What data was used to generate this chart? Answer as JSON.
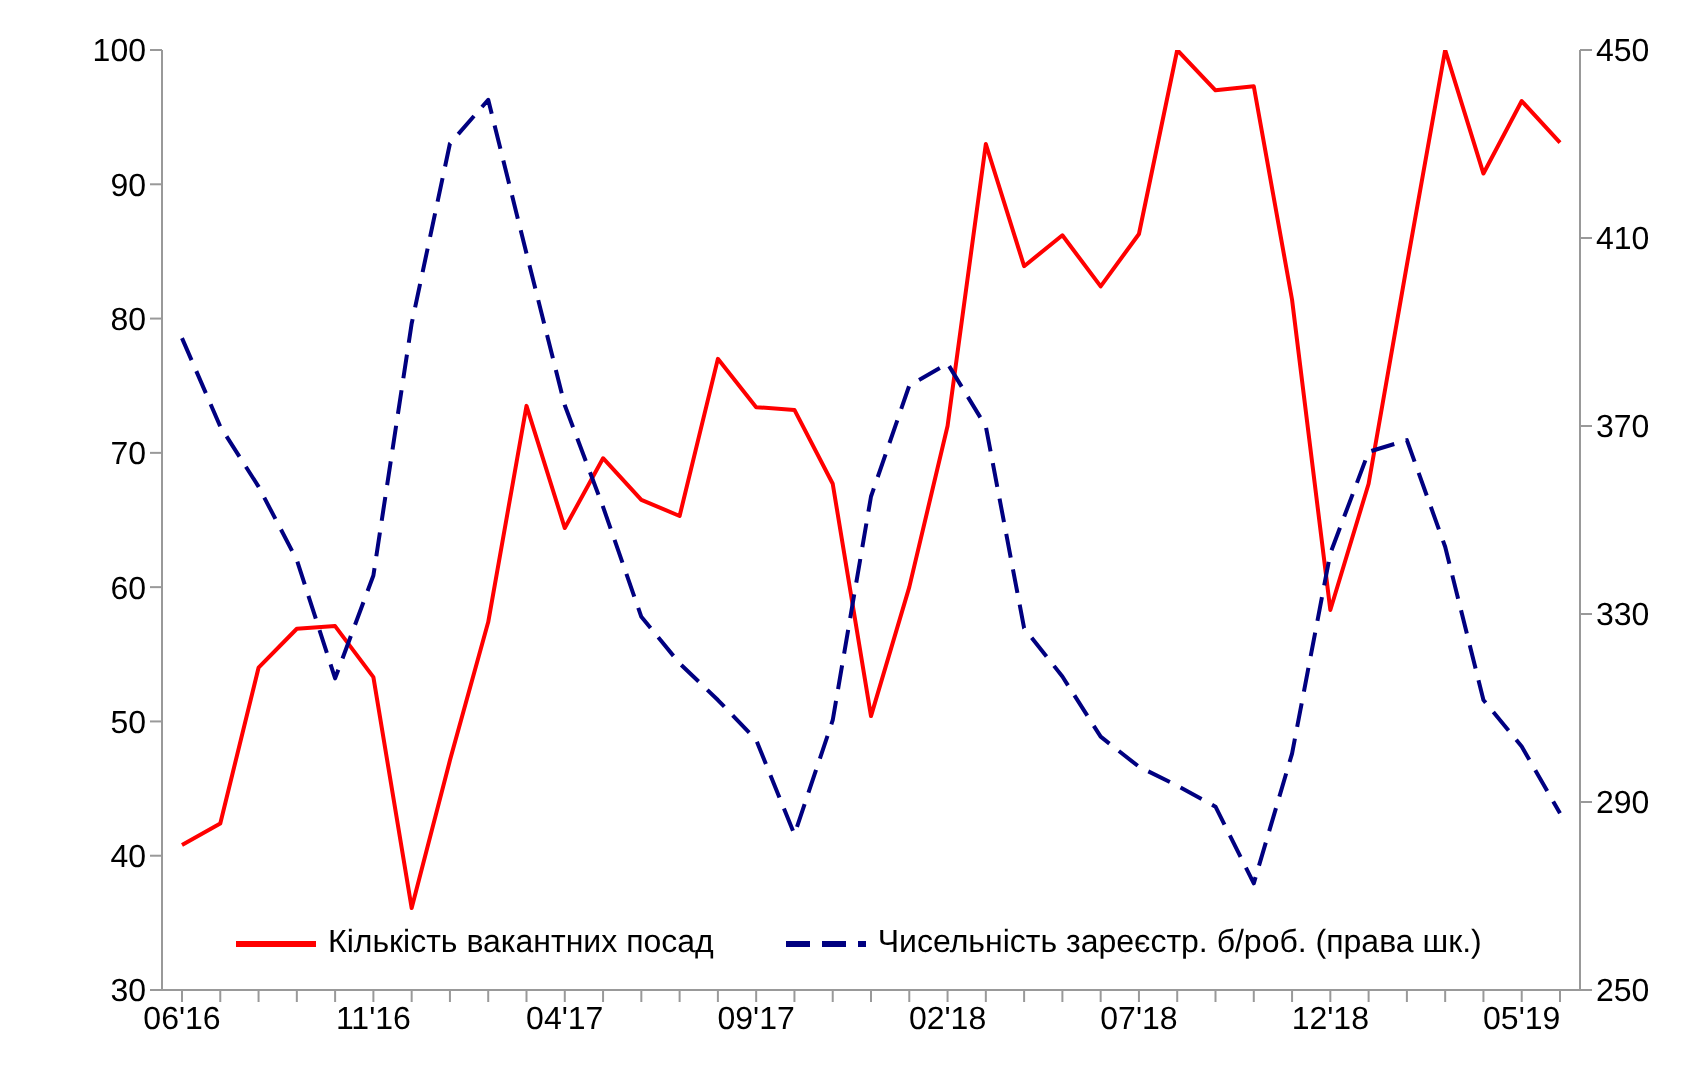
{
  "chart_data": {
    "type": "line",
    "categories": [
      "06'16",
      null,
      null,
      null,
      null,
      "11'16",
      null,
      null,
      null,
      null,
      "04'17",
      null,
      null,
      null,
      null,
      "09'17",
      null,
      null,
      null,
      null,
      "02'18",
      null,
      null,
      null,
      null,
      "07'18",
      null,
      null,
      null,
      null,
      "12'18",
      null,
      null,
      null,
      null,
      "05'19",
      null
    ],
    "series": [
      {
        "name": "Кількість вакантних посад",
        "color": "#ff0000",
        "line_style": "solid",
        "values": [
          40.8,
          42.4,
          54.0,
          56.9,
          57.1,
          53.3,
          36.1,
          47.1,
          57.4,
          73.5,
          64.4,
          69.6,
          66.5,
          65.3,
          77.0,
          73.4,
          73.2,
          67.7,
          50.4,
          60.0,
          72.0,
          93.0,
          83.9,
          86.2,
          82.4,
          86.3,
          100,
          97.0,
          97.3,
          81.4,
          58.3,
          67.7,
          84,
          100,
          90.8,
          96.2,
          93.1
        ]
      },
      {
        "name": "Чисельність зареєстр. б/роб. (права шк.)",
        "color": "#000080",
        "line_style": "dashed",
        "axis": "y2",
        "values": [
          388.7,
          369.9,
          357.1,
          341.5,
          316.3,
          338.2,
          391.8,
          430.1,
          439.4,
          406.7,
          374.4,
          352.8,
          329.4,
          319.5,
          311.7,
          303.2,
          283.1,
          307.4,
          355.0,
          378.6,
          383.3,
          369.9,
          327.0,
          316.7,
          303.9,
          297.5,
          293.5,
          289.0,
          272.7,
          300.3,
          342.9,
          364.5,
          367.0,
          344.3,
          311.7,
          301.8,
          287.6
        ]
      }
    ],
    "ylim": [
      30,
      100
    ],
    "yticks": [
      30,
      40,
      50,
      60,
      70,
      80,
      90,
      100
    ],
    "y2lim": [
      250,
      450
    ],
    "y2ticks": [
      250,
      290,
      330,
      370,
      410,
      450
    ],
    "grid": false,
    "legend": "bottom",
    "marker": "none"
  }
}
